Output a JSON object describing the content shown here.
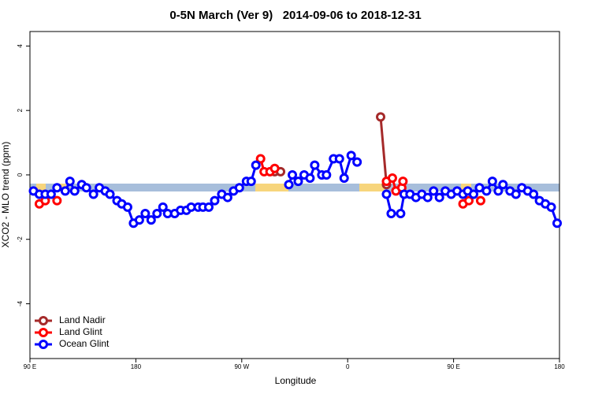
{
  "chart_data": {
    "type": "line",
    "title": "0-5N March (Ver 9)   2014-09-06 to 2018-12-31",
    "x_label": "Longitude",
    "y_label": "XCO2 - MLO trend (ppm)",
    "xlim": [
      90,
      540
    ],
    "ylim": [
      -5.7,
      4.45
    ],
    "xticks": [
      {
        "value": 90,
        "label": "90 E"
      },
      {
        "value": 180,
        "label": "180"
      },
      {
        "value": 270,
        "label": "90 W"
      },
      {
        "value": 360,
        "label": "0"
      },
      {
        "value": 450,
        "label": "90 E"
      },
      {
        "value": 540,
        "label": "180"
      }
    ],
    "yticks": [
      -4,
      -2,
      0,
      2,
      4
    ],
    "legend": "bottomleft",
    "series": [
      {
        "name": "Land Nadir",
        "color": "#a52a2a",
        "x": [
          298,
          303,
          350,
          388,
          393
        ],
        "values": [
          0.1,
          0.1,
          null,
          1.8,
          -0.3
        ]
      },
      {
        "name": "Land Glint",
        "color": "#ff0000",
        "x": [
          98,
          103,
          108,
          113,
          200,
          286,
          289,
          294,
          298,
          350,
          393,
          398,
          401,
          406,
          407,
          430,
          458,
          463,
          468,
          473
        ],
        "values": [
          -0.9,
          -0.8,
          null,
          -0.8,
          null,
          0.5,
          0.1,
          0.1,
          0.2,
          null,
          -0.2,
          -0.1,
          -0.5,
          -0.4,
          -0.2,
          null,
          -0.9,
          -0.8,
          null,
          -0.8
        ]
      },
      {
        "name": "Ocean Glint",
        "color": "#0000ff",
        "x": [
          93,
          98,
          103,
          108,
          113,
          120,
          124,
          128,
          134,
          138,
          144,
          149,
          154,
          158,
          164,
          168,
          173,
          178,
          183,
          188,
          193,
          198,
          203,
          207,
          213,
          218,
          223,
          227,
          233,
          237,
          242,
          247,
          253,
          258,
          263,
          268,
          274,
          278,
          282,
          296,
          310,
          313,
          318,
          323,
          328,
          332,
          338,
          342,
          348,
          353,
          357,
          363,
          368,
          380,
          393,
          397,
          405,
          408,
          413,
          418,
          423,
          428,
          433,
          438,
          443,
          448,
          453,
          458,
          462,
          467,
          472,
          478,
          483,
          488,
          492,
          498,
          503,
          508,
          513,
          518,
          523,
          528,
          533,
          538
        ],
        "values": [
          -0.5,
          -0.6,
          -0.6,
          -0.6,
          -0.4,
          -0.5,
          -0.2,
          -0.5,
          -0.3,
          -0.4,
          -0.6,
          -0.4,
          -0.5,
          -0.6,
          -0.8,
          -0.9,
          -1.0,
          -1.5,
          -1.4,
          -1.2,
          -1.4,
          -1.2,
          -1.0,
          -1.2,
          -1.2,
          -1.1,
          -1.1,
          -1.0,
          -1.0,
          -1.0,
          -1.0,
          -0.8,
          -0.6,
          -0.7,
          -0.5,
          -0.4,
          -0.2,
          -0.2,
          0.3,
          null,
          -0.3,
          0.0,
          -0.2,
          0.0,
          -0.1,
          0.3,
          0.0,
          0.0,
          0.5,
          0.5,
          -0.1,
          0.6,
          0.4,
          null,
          -0.6,
          -1.2,
          -1.2,
          -0.6,
          -0.6,
          -0.7,
          -0.6,
          -0.7,
          -0.5,
          -0.7,
          -0.5,
          -0.6,
          -0.5,
          -0.6,
          -0.5,
          -0.6,
          -0.4,
          -0.5,
          -0.2,
          -0.5,
          -0.3,
          -0.5,
          -0.6,
          -0.4,
          -0.5,
          -0.6,
          -0.8,
          -0.9,
          -1.0,
          -1.5
        ]
      }
    ]
  }
}
